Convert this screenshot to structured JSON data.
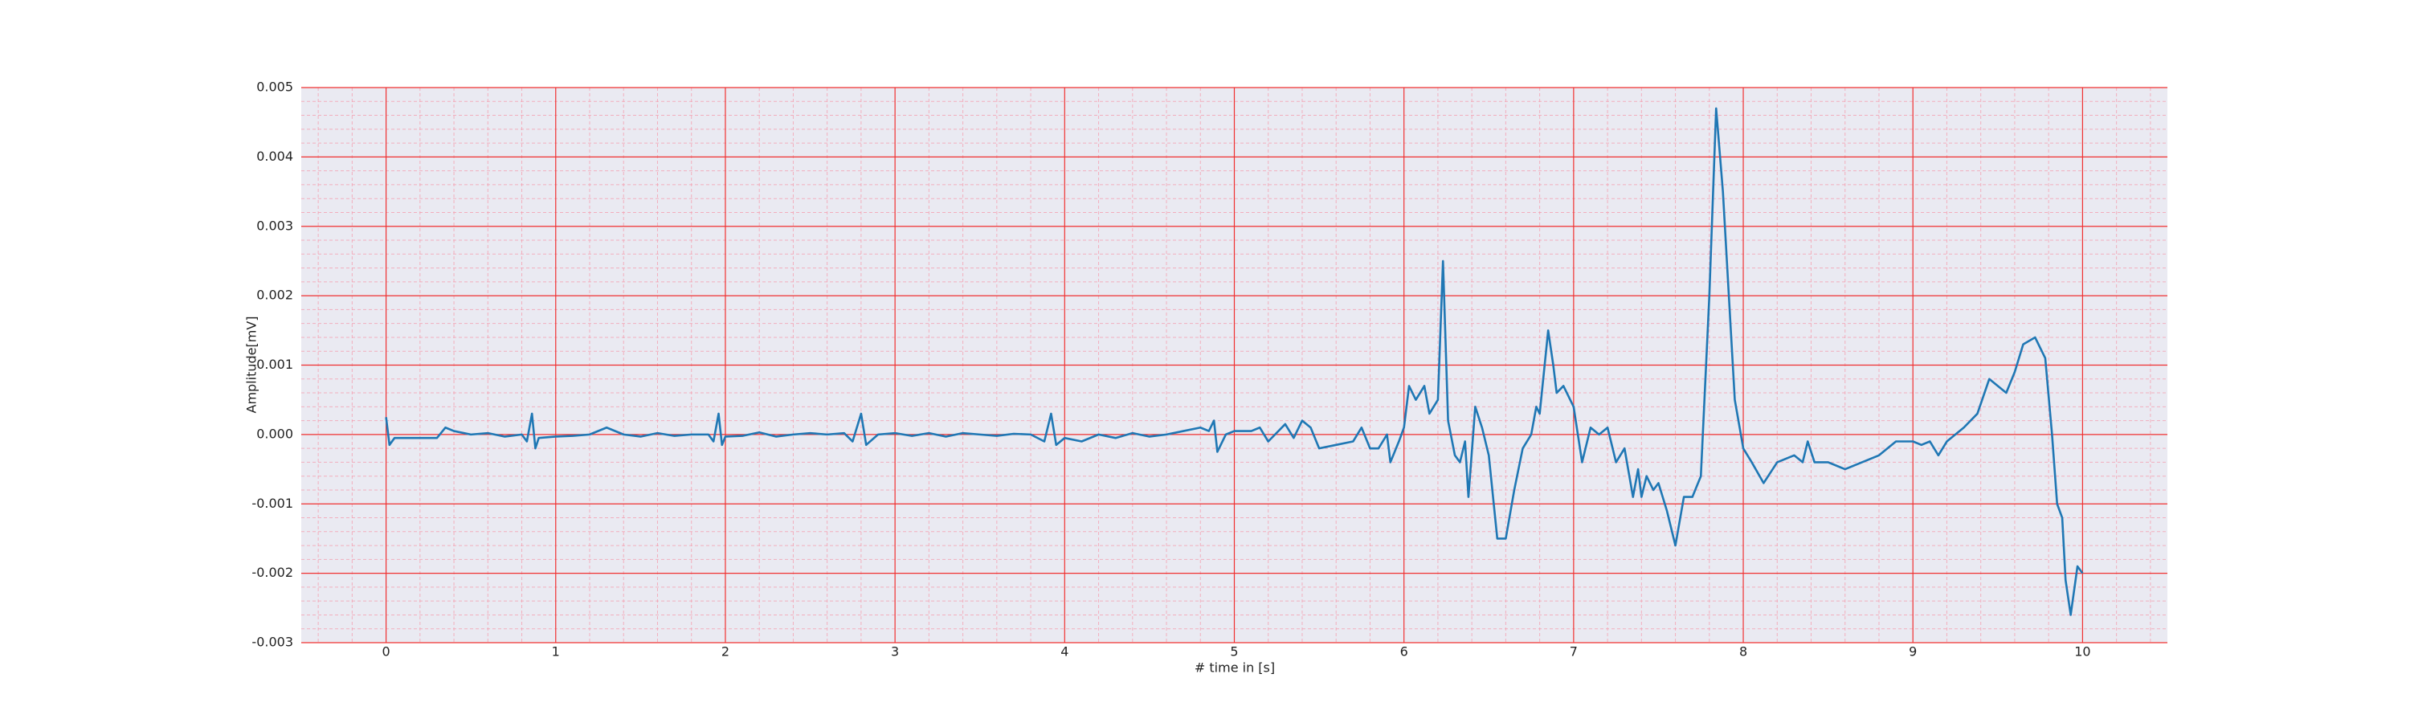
{
  "chart_data": {
    "type": "line",
    "xlabel": "# time in [s]",
    "ylabel": "Amplitude[mV]",
    "xlim": [
      -0.5,
      10.5
    ],
    "xticks": [
      0,
      1,
      2,
      3,
      4,
      5,
      6,
      7,
      8,
      9,
      10
    ],
    "ylim": [
      -0.003,
      0.005
    ],
    "yticks": [
      {
        "value": -0.003,
        "label": "-0.003"
      },
      {
        "value": -0.002,
        "label": "-0.002"
      },
      {
        "value": -0.001,
        "label": "-0.001"
      },
      {
        "value": 0,
        "label": "0.000"
      },
      {
        "value": 0.001,
        "label": "0.001"
      },
      {
        "value": 0.002,
        "label": "0.002"
      },
      {
        "value": 0.003,
        "label": "0.003"
      },
      {
        "value": 0.004,
        "label": "0.004"
      },
      {
        "value": 0.005,
        "label": "0.005"
      }
    ],
    "grid": true,
    "minor_grid": true,
    "x": [
      0,
      0.02,
      0.05,
      0.1,
      0.2,
      0.3,
      0.35,
      0.4,
      0.5,
      0.6,
      0.7,
      0.8,
      0.83,
      0.86,
      0.88,
      0.9,
      1.0,
      1.1,
      1.2,
      1.3,
      1.4,
      1.5,
      1.6,
      1.7,
      1.8,
      1.9,
      1.93,
      1.96,
      1.98,
      2.0,
      2.1,
      2.2,
      2.3,
      2.4,
      2.5,
      2.6,
      2.7,
      2.75,
      2.8,
      2.83,
      2.9,
      3.0,
      3.1,
      3.2,
      3.3,
      3.4,
      3.5,
      3.6,
      3.7,
      3.8,
      3.88,
      3.92,
      3.95,
      4.0,
      4.1,
      4.2,
      4.3,
      4.4,
      4.5,
      4.6,
      4.7,
      4.8,
      4.85,
      4.88,
      4.9,
      4.95,
      5.0,
      5.1,
      5.15,
      5.2,
      5.3,
      5.35,
      5.4,
      5.45,
      5.5,
      5.6,
      5.7,
      5.75,
      5.8,
      5.85,
      5.9,
      5.92,
      5.97,
      6.0,
      6.03,
      6.07,
      6.12,
      6.15,
      6.2,
      6.23,
      6.26,
      6.3,
      6.33,
      6.36,
      6.38,
      6.42,
      6.46,
      6.5,
      6.55,
      6.6,
      6.65,
      6.7,
      6.75,
      6.78,
      6.8,
      6.85,
      6.88,
      6.9,
      6.94,
      7.0,
      7.05,
      7.1,
      7.15,
      7.2,
      7.25,
      7.3,
      7.35,
      7.38,
      7.4,
      7.43,
      7.47,
      7.5,
      7.55,
      7.6,
      7.65,
      7.7,
      7.75,
      7.8,
      7.84,
      7.88,
      7.95,
      8.0,
      8.05,
      8.12,
      8.2,
      8.3,
      8.35,
      8.38,
      8.42,
      8.5,
      8.6,
      8.7,
      8.8,
      8.9,
      9.0,
      9.05,
      9.1,
      9.15,
      9.2,
      9.3,
      9.38,
      9.45,
      9.5,
      9.55,
      9.6,
      9.65,
      9.72,
      9.78,
      9.82,
      9.85,
      9.88,
      9.9,
      9.93,
      9.97,
      10.0
    ],
    "series": [
      {
        "color": "#1f77b4",
        "values": [
          0.00025,
          -0.00015,
          -5e-05,
          -5e-05,
          -5e-05,
          -5e-05,
          0.0001,
          5e-05,
          0,
          2e-05,
          -3e-05,
          0,
          -0.0001,
          0.0003,
          -0.0002,
          -5e-05,
          -3e-05,
          -2e-05,
          0,
          0.0001,
          0,
          -3e-05,
          2e-05,
          -2e-05,
          0,
          0,
          -0.0001,
          0.0003,
          -0.00015,
          -3e-05,
          -2e-05,
          3e-05,
          -3e-05,
          0,
          2e-05,
          0,
          2e-05,
          -0.0001,
          0.0003,
          -0.00015,
          0,
          2e-05,
          -2e-05,
          2e-05,
          -3e-05,
          2e-05,
          0,
          -2e-05,
          1e-05,
          0,
          -0.0001,
          0.0003,
          -0.00015,
          -5e-05,
          -0.0001,
          0,
          -5e-05,
          2e-05,
          -3e-05,
          0,
          5e-05,
          0.0001,
          5e-05,
          0.0002,
          -0.00025,
          0,
          5e-05,
          5e-05,
          0.0001,
          -0.0001,
          0.00015,
          -5e-05,
          0.0002,
          0.0001,
          -0.0002,
          -0.00015,
          -0.0001,
          0.0001,
          -0.0002,
          -0.0002,
          0,
          -0.0004,
          -0.0001,
          0.0001,
          0.0007,
          0.0005,
          0.0007,
          0.0003,
          0.0005,
          0.0025,
          0.0002,
          -0.0003,
          -0.0004,
          -0.0001,
          -0.0009,
          0.0004,
          0.0001,
          -0.0003,
          -0.0015,
          -0.0015,
          -0.0008,
          -0.0002,
          0,
          0.0004,
          0.0003,
          0.0015,
          0.001,
          0.0006,
          0.0007,
          0.0004,
          -0.0004,
          0.0001,
          0,
          0.0001,
          -0.0004,
          -0.0002,
          -0.0009,
          -0.0005,
          -0.0009,
          -0.0006,
          -0.0008,
          -0.0007,
          -0.0011,
          -0.0016,
          -0.0009,
          -0.0009,
          -0.0006,
          0.002,
          0.0047,
          0.0035,
          0.0005,
          -0.0002,
          -0.0004,
          -0.0007,
          -0.0004,
          -0.0003,
          -0.0004,
          -0.0001,
          -0.0004,
          -0.0004,
          -0.0005,
          -0.0004,
          -0.0003,
          -0.0001,
          -0.0001,
          -0.00015,
          -0.0001,
          -0.0003,
          -0.0001,
          0.0001,
          0.0003,
          0.0008,
          0.0007,
          0.0006,
          0.0009,
          0.0013,
          0.0014,
          0.0011,
          0,
          -0.001,
          -0.0012,
          -0.0021,
          -0.0026,
          -0.0019,
          -0.002
        ]
      }
    ]
  }
}
